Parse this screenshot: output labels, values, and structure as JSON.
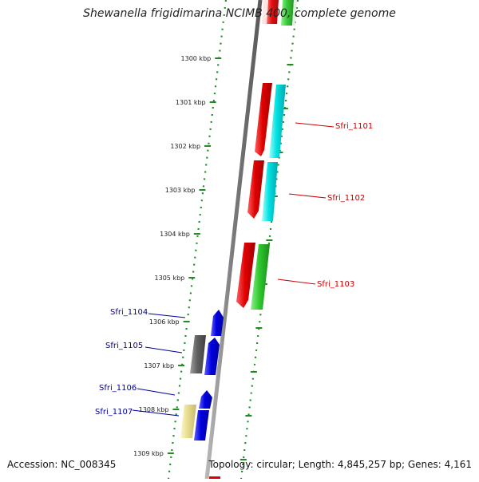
{
  "title": "Shewanella frigidimarina NCIMB 400, complete genome",
  "footer": {
    "accession": "Accession: NC_008345",
    "summary": "Topology: circular; Length: 4,845,257 bp; Genes: 4,161"
  },
  "scale_ticks": [
    "1300 kbp",
    "1301 kbp",
    "1302 kbp",
    "1303 kbp",
    "1304 kbp",
    "1305 kbp",
    "1306 kbp",
    "1307 kbp",
    "1308 kbp",
    "1309 kbp"
  ],
  "genes": [
    {
      "label": "Sfri_1101",
      "strand": "reverse",
      "color": "#e00000",
      "cog_color": "#00e0e0"
    },
    {
      "label": "Sfri_1102",
      "strand": "reverse",
      "color": "#e00000",
      "cog_color": "#00e0e0"
    },
    {
      "label": "Sfri_1103",
      "strand": "reverse",
      "color": "#e00000",
      "cog_color": "#2ec82e"
    },
    {
      "label": "Sfri_1104",
      "strand": "forward",
      "color": "#0000e0"
    },
    {
      "label": "Sfri_1105",
      "strand": "forward",
      "color": "#0000e0",
      "cog_color": "#606060"
    },
    {
      "label": "Sfri_1106",
      "strand": "forward",
      "color": "#0000e0"
    },
    {
      "label": "Sfri_1107",
      "strand": "forward",
      "color": "#0000e0",
      "cog_color": "#e8dc90"
    }
  ],
  "colors": {
    "reverse_label": "#cc0000",
    "forward_label": "#000099",
    "backbone": "#888888",
    "tick": "#228b22"
  }
}
